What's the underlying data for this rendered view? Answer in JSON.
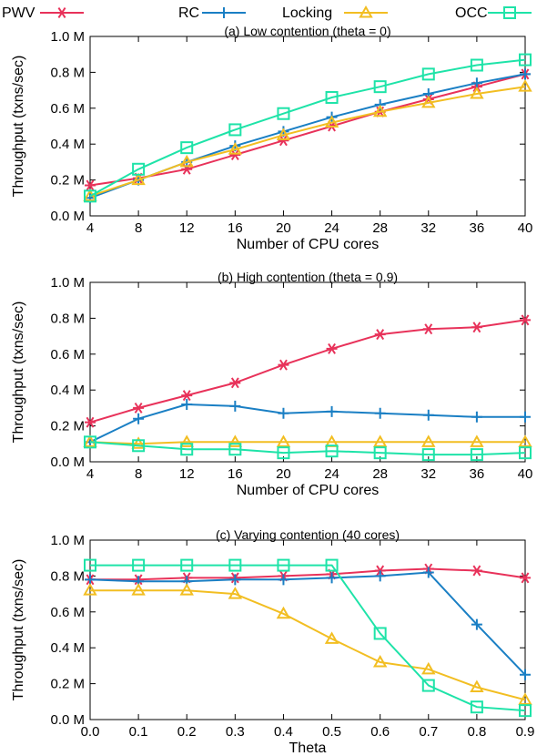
{
  "legend": [
    {
      "name": "PWV",
      "color": "#e8325a",
      "marker": "asterisk"
    },
    {
      "name": "RC",
      "color": "#1a7fc4",
      "marker": "plus"
    },
    {
      "name": "Locking",
      "color": "#f2be22",
      "marker": "triangle"
    },
    {
      "name": "OCC",
      "color": "#1ee3a8",
      "marker": "square"
    }
  ],
  "chart_data": [
    {
      "type": "line",
      "title": "(a) Low contention (theta = 0)",
      "xlabel": "Number of CPU cores",
      "ylabel": "Throughput (txns/sec)",
      "x": [
        4,
        8,
        12,
        16,
        20,
        24,
        28,
        32,
        36,
        40
      ],
      "x_tick_labels": [
        "4",
        "8",
        "12",
        "16",
        "20",
        "24",
        "28",
        "32",
        "36",
        "40"
      ],
      "xlim": [
        4,
        40
      ],
      "ylim": [
        0,
        1.0
      ],
      "y_ticks": [
        0,
        0.2,
        0.4,
        0.6,
        0.8,
        1.0
      ],
      "y_tick_labels": [
        "0.0 M",
        "0.2 M",
        "0.4 M",
        "0.6 M",
        "0.8 M",
        "1.0 M"
      ],
      "grid": false,
      "series": [
        {
          "name": "PWV",
          "values": [
            0.17,
            0.21,
            0.26,
            0.34,
            0.42,
            0.5,
            0.58,
            0.65,
            0.72,
            0.79
          ]
        },
        {
          "name": "RC",
          "values": [
            0.1,
            0.2,
            0.3,
            0.39,
            0.47,
            0.55,
            0.62,
            0.68,
            0.74,
            0.79
          ]
        },
        {
          "name": "Locking",
          "values": [
            0.11,
            0.2,
            0.3,
            0.37,
            0.45,
            0.52,
            0.58,
            0.63,
            0.68,
            0.72
          ]
        },
        {
          "name": "OCC",
          "values": [
            0.11,
            0.26,
            0.38,
            0.48,
            0.57,
            0.66,
            0.72,
            0.79,
            0.84,
            0.87
          ]
        }
      ]
    },
    {
      "type": "line",
      "title": "(b) High contention (theta = 0.9)",
      "xlabel": "Number of CPU cores",
      "ylabel": "Throughput (txns/sec)",
      "x": [
        4,
        8,
        12,
        16,
        20,
        24,
        28,
        32,
        36,
        40
      ],
      "x_tick_labels": [
        "4",
        "8",
        "12",
        "16",
        "20",
        "24",
        "28",
        "32",
        "36",
        "40"
      ],
      "xlim": [
        4,
        40
      ],
      "ylim": [
        0,
        1.0
      ],
      "y_ticks": [
        0,
        0.2,
        0.4,
        0.6,
        0.8,
        1.0
      ],
      "y_tick_labels": [
        "0.0 M",
        "0.2 M",
        "0.4 M",
        "0.6 M",
        "0.8 M",
        "1.0 M"
      ],
      "grid": false,
      "series": [
        {
          "name": "PWV",
          "values": [
            0.22,
            0.3,
            0.37,
            0.44,
            0.54,
            0.63,
            0.71,
            0.74,
            0.75,
            0.79
          ]
        },
        {
          "name": "RC",
          "values": [
            0.11,
            0.24,
            0.32,
            0.31,
            0.27,
            0.28,
            0.27,
            0.26,
            0.25,
            0.25
          ]
        },
        {
          "name": "Locking",
          "values": [
            0.11,
            0.1,
            0.11,
            0.11,
            0.11,
            0.11,
            0.11,
            0.11,
            0.11,
            0.11
          ]
        },
        {
          "name": "OCC",
          "values": [
            0.11,
            0.09,
            0.07,
            0.07,
            0.05,
            0.06,
            0.05,
            0.04,
            0.04,
            0.05
          ]
        }
      ]
    },
    {
      "type": "line",
      "title": "(c) Varying contention (40 cores)",
      "xlabel": "Theta",
      "ylabel": "Throughput (txns/sec)",
      "x": [
        0.0,
        0.1,
        0.2,
        0.3,
        0.4,
        0.5,
        0.6,
        0.7,
        0.8,
        0.9
      ],
      "x_tick_labels": [
        "0.0",
        "0.1",
        "0.2",
        "0.3",
        "0.4",
        "0.5",
        "0.6",
        "0.7",
        "0.8",
        "0.9"
      ],
      "xlim": [
        0.0,
        0.9
      ],
      "ylim": [
        0,
        1.0
      ],
      "y_ticks": [
        0,
        0.2,
        0.4,
        0.6,
        0.8,
        1.0
      ],
      "y_tick_labels": [
        "0.0 M",
        "0.2 M",
        "0.4 M",
        "0.6 M",
        "0.8 M",
        "1.0 M"
      ],
      "grid": false,
      "series": [
        {
          "name": "PWV",
          "values": [
            0.78,
            0.78,
            0.79,
            0.79,
            0.8,
            0.81,
            0.83,
            0.84,
            0.83,
            0.79
          ]
        },
        {
          "name": "RC",
          "values": [
            0.78,
            0.77,
            0.77,
            0.78,
            0.78,
            0.79,
            0.8,
            0.82,
            0.53,
            0.25
          ]
        },
        {
          "name": "Locking",
          "values": [
            0.72,
            0.72,
            0.72,
            0.7,
            0.59,
            0.45,
            0.32,
            0.28,
            0.18,
            0.11
          ]
        },
        {
          "name": "OCC",
          "values": [
            0.86,
            0.86,
            0.86,
            0.86,
            0.86,
            0.86,
            0.48,
            0.19,
            0.07,
            0.05
          ]
        }
      ]
    }
  ]
}
